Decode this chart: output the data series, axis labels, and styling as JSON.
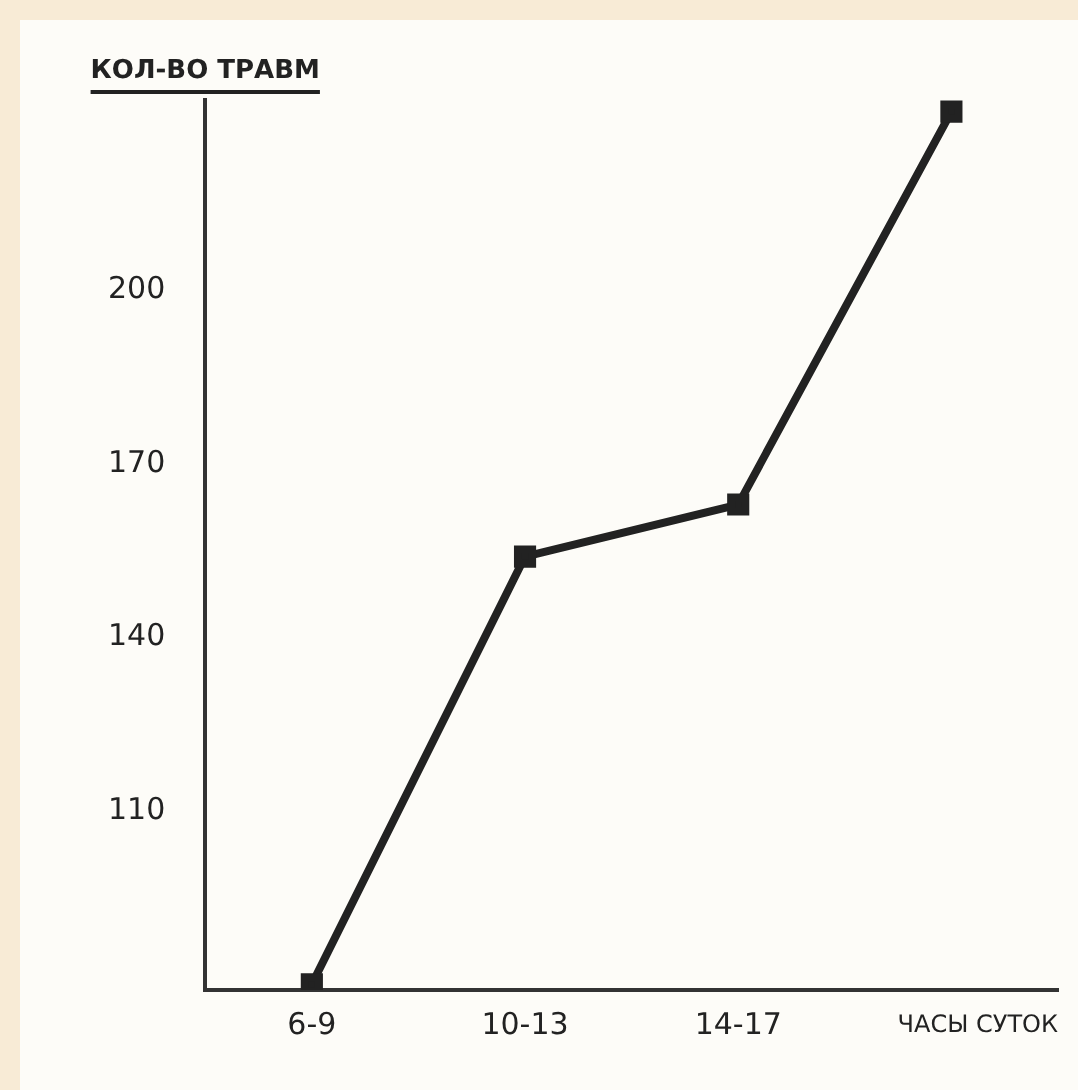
{
  "chart_data": {
    "type": "line",
    "ylabel": "КОЛ-ВО ТРАВМ",
    "xlabel": "ЧАСЫ СУТОК",
    "categories": [
      "6-9",
      "10-13",
      "14-17",
      null
    ],
    "series": [
      {
        "color": "#222222",
        "values": [
          80,
          154,
          163,
          231
        ]
      }
    ],
    "ylim": [
      79,
      233
    ],
    "yticks": [
      110,
      140,
      170,
      200
    ],
    "grid": false,
    "legend": false,
    "marker": "square",
    "line_style": "solid"
  }
}
